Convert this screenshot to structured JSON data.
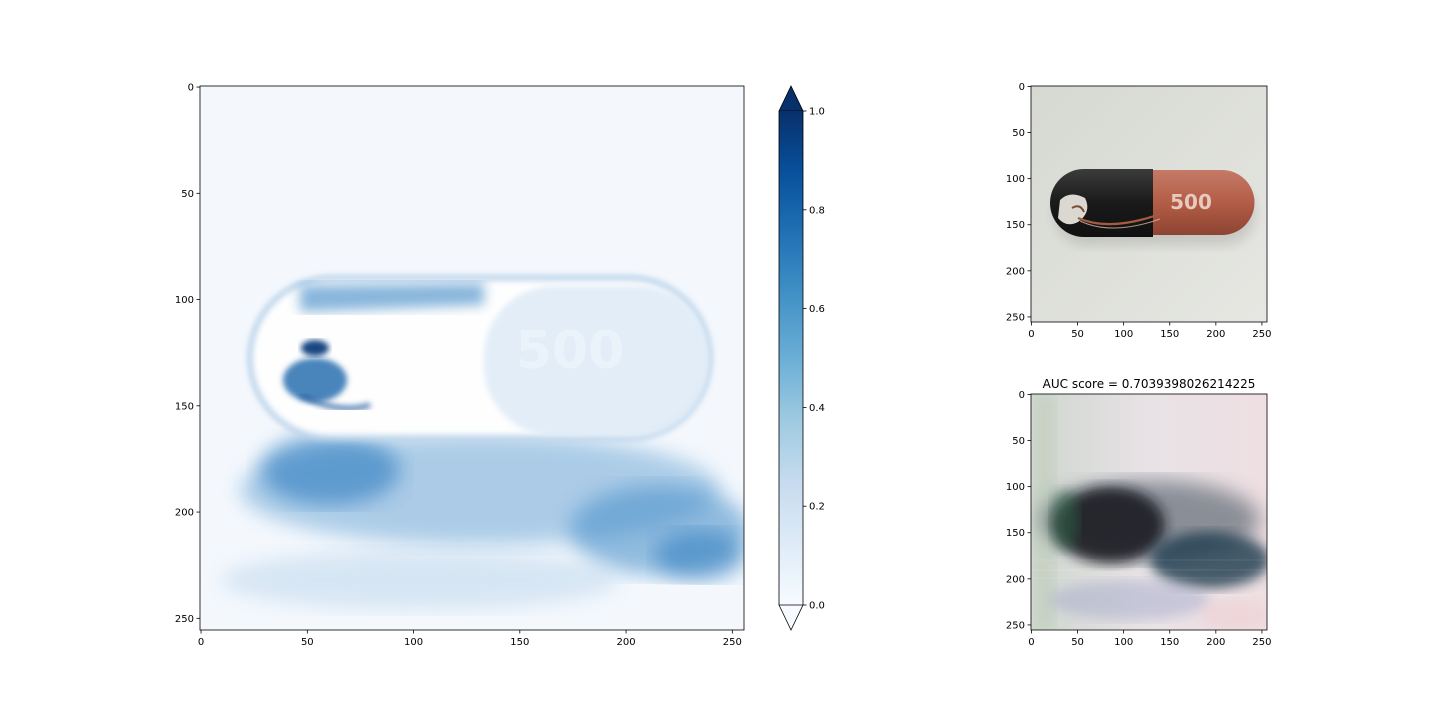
{
  "chart_data": [
    {
      "type": "heatmap",
      "subject": "anomaly map of capsule image",
      "colormap": "Blues",
      "colorbar": {
        "ticks": [
          "0.0",
          "0.2",
          "0.4",
          "0.6",
          "0.8",
          "1.0"
        ],
        "extend": "both",
        "range": [
          0.0,
          1.0
        ]
      },
      "x_ticks": [
        "0",
        "50",
        "100",
        "150",
        "200",
        "250"
      ],
      "y_ticks": [
        "0",
        "50",
        "100",
        "150",
        "200",
        "250"
      ],
      "xlim": [
        0,
        256
      ],
      "ylim": [
        256,
        0
      ],
      "title": ""
    },
    {
      "type": "image",
      "subject": "capsule photo (black and orange-red capsule marked 500, cracked black half)",
      "capsule_print": "500",
      "x_ticks": [
        "0",
        "50",
        "100",
        "150",
        "200",
        "250"
      ],
      "y_ticks": [
        "0",
        "50",
        "100",
        "150",
        "200",
        "250"
      ],
      "title": ""
    },
    {
      "type": "image",
      "subject": "reconstruction / prediction image",
      "title": "AUC score = 0.7039398026214225",
      "x_ticks": [
        "0",
        "50",
        "100",
        "150",
        "200",
        "250"
      ],
      "y_ticks": [
        "0",
        "50",
        "100",
        "150",
        "200",
        "250"
      ]
    }
  ]
}
